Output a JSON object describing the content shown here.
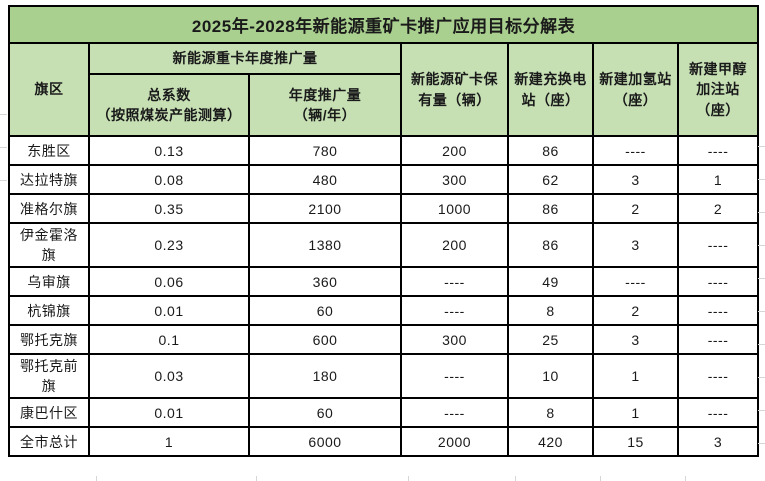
{
  "title": "2025年-2028年新能源重矿卡推广应用目标分解表",
  "columns": {
    "region": "旗区",
    "promotion_group": "新能源重卡年度推广量",
    "coefficient": "总系数\n（按照煤炭产能测算）",
    "annual_volume": "年度推广量\n（辆/年）",
    "holding": "新能源矿卡保有量（辆）",
    "swap_station": "新建充换电站（座）",
    "hydrogen_station": "新建加氢站（座）",
    "methanol_station": "新建甲醇加注站（座）"
  },
  "rows": [
    [
      "东胜区",
      "0.13",
      "780",
      "200",
      "86",
      "----",
      "----"
    ],
    [
      "达拉特旗",
      "0.08",
      "480",
      "300",
      "62",
      "3",
      "1"
    ],
    [
      "准格尔旗",
      "0.35",
      "2100",
      "1000",
      "86",
      "2",
      "2"
    ],
    [
      "伊金霍洛旗",
      "0.23",
      "1380",
      "200",
      "86",
      "3",
      "----"
    ],
    [
      "乌审旗",
      "0.06",
      "360",
      "----",
      "49",
      "----",
      "----"
    ],
    [
      "杭锦旗",
      "0.01",
      "60",
      "----",
      "8",
      "2",
      "----"
    ],
    [
      "鄂托克旗",
      "0.1",
      "600",
      "300",
      "25",
      "3",
      "----"
    ],
    [
      "鄂托克前旗",
      "0.03",
      "180",
      "----",
      "10",
      "1",
      "----"
    ],
    [
      "康巴什区",
      "0.01",
      "60",
      "----",
      "8",
      "1",
      "----"
    ],
    [
      "全市总计",
      "1",
      "6000",
      "2000",
      "420",
      "15",
      "3"
    ]
  ],
  "colors": {
    "title_bg": "#a9d08e",
    "header_bg": "#c6e0b4",
    "border": "#000000",
    "gridline": "#d6d6d6",
    "text": "#1a1a1a"
  }
}
